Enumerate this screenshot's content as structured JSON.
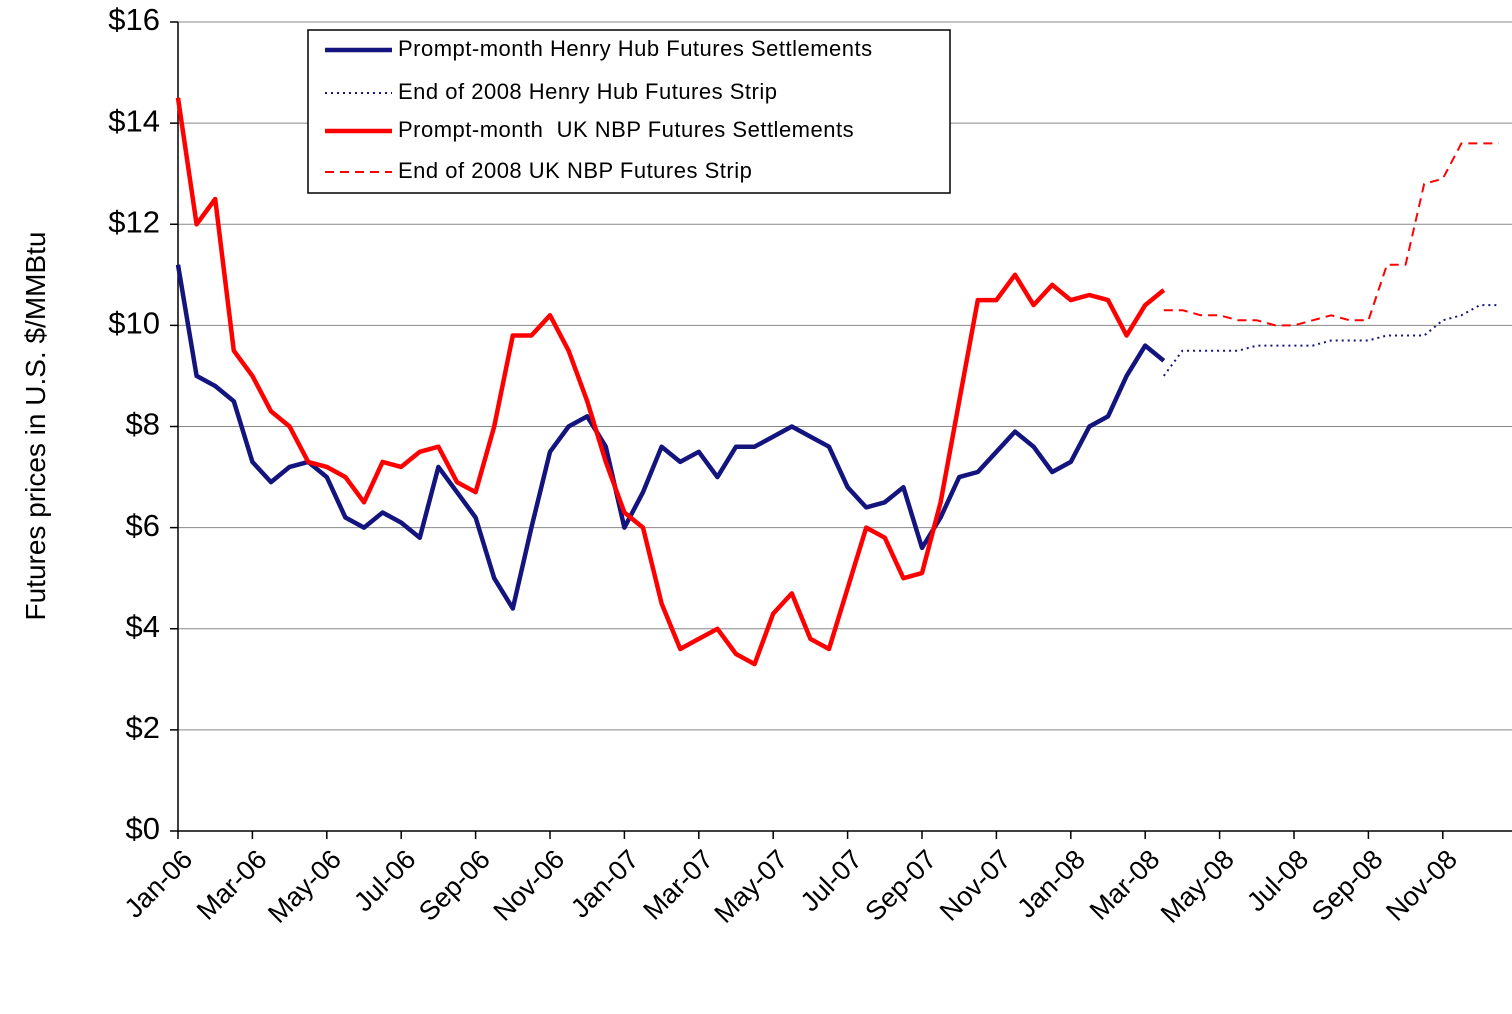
{
  "chart_data": {
    "type": "line",
    "y_label": "Futures prices in U.S. $/MMBtu",
    "categories": [
      "Jan-06",
      null,
      null,
      null,
      "Mar-06",
      null,
      null,
      null,
      "May-06",
      null,
      null,
      null,
      "Jul-06",
      null,
      null,
      null,
      "Sep-06",
      null,
      null,
      null,
      "Nov-06",
      null,
      null,
      null,
      "Jan-07",
      null,
      null,
      null,
      "Mar-07",
      null,
      null,
      null,
      "May-07",
      null,
      null,
      null,
      "Jul-07",
      null,
      null,
      null,
      "Sep-07",
      null,
      null,
      null,
      "Nov-07",
      null,
      null,
      null,
      "Jan-08",
      null,
      null,
      null,
      "Mar-08",
      null,
      null,
      null,
      "May-08",
      null,
      null,
      null,
      "Jul-08",
      null,
      null,
      null,
      "Sep-08",
      null,
      null,
      null,
      "Nov-08",
      null,
      null,
      null
    ],
    "series": [
      {
        "name": "Prompt-month Henry Hub Futures Settlements",
        "color": "#14147f",
        "style": "solid",
        "values": [
          11.2,
          9.0,
          8.8,
          8.5,
          7.3,
          6.9,
          7.2,
          7.3,
          7.0,
          6.2,
          6.0,
          6.3,
          6.1,
          5.8,
          7.2,
          6.7,
          6.2,
          5.0,
          4.4,
          6.0,
          7.5,
          8.0,
          8.2,
          7.6,
          6.0,
          6.7,
          7.6,
          7.3,
          7.5,
          7.0,
          7.6,
          7.6,
          7.8,
          8.0,
          7.8,
          7.6,
          6.8,
          6.4,
          6.5,
          6.8,
          5.6,
          6.2,
          7.0,
          7.1,
          7.5,
          7.9,
          7.6,
          7.1,
          7.3,
          8.0,
          8.2,
          9.0,
          9.6,
          9.3,
          null,
          null,
          null,
          null,
          null,
          null,
          null,
          null,
          null,
          null,
          null,
          null,
          null,
          null,
          null,
          null,
          null,
          null
        ]
      },
      {
        "name": "End of 2008 Henry Hub Futures Strip",
        "color": "#14147f",
        "style": "dotted",
        "values": [
          null,
          null,
          null,
          null,
          null,
          null,
          null,
          null,
          null,
          null,
          null,
          null,
          null,
          null,
          null,
          null,
          null,
          null,
          null,
          null,
          null,
          null,
          null,
          null,
          null,
          null,
          null,
          null,
          null,
          null,
          null,
          null,
          null,
          null,
          null,
          null,
          null,
          null,
          null,
          null,
          null,
          null,
          null,
          null,
          null,
          null,
          null,
          null,
          null,
          null,
          null,
          null,
          null,
          9.0,
          9.5,
          9.5,
          9.5,
          9.5,
          9.6,
          9.6,
          9.6,
          9.6,
          9.7,
          9.7,
          9.7,
          9.8,
          9.8,
          9.8,
          10.1,
          10.2,
          10.4,
          10.4
        ]
      },
      {
        "name": "Prompt-month  UK NBP Futures Settlements",
        "color": "#ff0000",
        "style": "solid",
        "values": [
          14.5,
          12.0,
          12.5,
          9.5,
          9.0,
          8.3,
          8.0,
          7.3,
          7.2,
          7.0,
          6.5,
          7.3,
          7.2,
          7.5,
          7.6,
          6.9,
          6.7,
          8.0,
          9.8,
          9.8,
          10.2,
          9.5,
          8.5,
          7.3,
          6.3,
          6.0,
          4.5,
          3.6,
          3.8,
          4.0,
          3.5,
          3.3,
          4.3,
          4.7,
          3.8,
          3.6,
          4.8,
          6.0,
          5.8,
          5.0,
          5.1,
          6.5,
          8.5,
          10.5,
          10.5,
          11.0,
          10.4,
          10.8,
          10.5,
          10.6,
          10.5,
          9.8,
          10.4,
          10.7,
          null,
          null,
          null,
          null,
          null,
          null,
          null,
          null,
          null,
          null,
          null,
          null,
          null,
          null,
          null,
          null,
          null,
          null
        ]
      },
      {
        "name": "End of 2008 UK NBP Futures Strip",
        "color": "#ff0000",
        "style": "dashed",
        "values": [
          null,
          null,
          null,
          null,
          null,
          null,
          null,
          null,
          null,
          null,
          null,
          null,
          null,
          null,
          null,
          null,
          null,
          null,
          null,
          null,
          null,
          null,
          null,
          null,
          null,
          null,
          null,
          null,
          null,
          null,
          null,
          null,
          null,
          null,
          null,
          null,
          null,
          null,
          null,
          null,
          null,
          null,
          null,
          null,
          null,
          null,
          null,
          null,
          null,
          null,
          null,
          null,
          null,
          10.3,
          10.3,
          10.2,
          10.2,
          10.1,
          10.1,
          10.0,
          10.0,
          10.1,
          10.2,
          10.1,
          10.1,
          11.2,
          11.2,
          12.8,
          12.9,
          13.6,
          13.6,
          13.6
        ]
      }
    ],
    "ylim": [
      0,
      16
    ],
    "yticks": [
      {
        "value": 0,
        "label": "$0"
      },
      {
        "value": 2,
        "label": "$2"
      },
      {
        "value": 4,
        "label": "$4"
      },
      {
        "value": 6,
        "label": "$6"
      },
      {
        "value": 8,
        "label": "$8"
      },
      {
        "value": 10,
        "label": "$10"
      },
      {
        "value": 12,
        "label": "$12"
      },
      {
        "value": 14,
        "label": "$14"
      },
      {
        "value": 16,
        "label": "$16"
      }
    ],
    "grid": true,
    "legend": "top"
  }
}
